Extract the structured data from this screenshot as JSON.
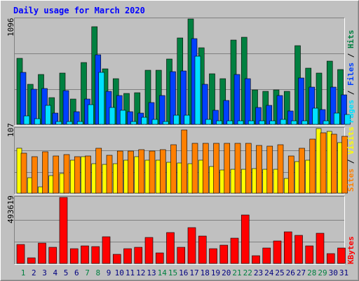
{
  "title": "Daily usage for March 2020",
  "colors": {
    "background": "#c0c0c0",
    "title": "#0000ff",
    "hits": "#008040",
    "files": "#0040ff",
    "pages": "#00e0ff",
    "visits": "#ffff00",
    "sites": "#ff8000",
    "kbytes": "#ff0000",
    "weekend_label": "#008040",
    "weekday_label": "#000080"
  },
  "chart_data": [
    {
      "type": "bar",
      "panel": "requests",
      "ymax_label": "1096",
      "ymax": 1096,
      "legend": [
        {
          "key": "pages",
          "label": "Pages"
        },
        {
          "key": "sep1",
          "label": " / "
        },
        {
          "key": "files",
          "label": "Files"
        },
        {
          "key": "sep2",
          "label": " / "
        },
        {
          "key": "hits",
          "label": "Hits"
        }
      ],
      "series": [
        {
          "name": "Hits",
          "values": [
            686,
            418,
            522,
            278,
            530,
            266,
            645,
            1012,
            578,
            474,
            322,
            332,
            562,
            562,
            678,
            902,
            1096,
            798,
            526,
            474,
            878,
            908,
            355,
            345,
            355,
            345,
            818,
            584,
            534,
            654,
            568
          ]
        },
        {
          "name": "Files",
          "values": [
            543,
            367,
            374,
            118,
            348,
            130,
            265,
            723,
            340,
            299,
            130,
            120,
            226,
            300,
            550,
            553,
            894,
            420,
            145,
            250,
            522,
            476,
            172,
            200,
            300,
            141,
            479,
            390,
            153,
            389,
            309
          ]
        },
        {
          "name": "Pages",
          "values": [
            89,
            62,
            200,
            30,
            30,
            30,
            202,
            538,
            176,
            144,
            30,
            70,
            48,
            30,
            94,
            97,
            711,
            50,
            40,
            40,
            40,
            40,
            40,
            40,
            51,
            40,
            40,
            170,
            40,
            120,
            99
          ]
        }
      ]
    },
    {
      "type": "bar",
      "panel": "visitors",
      "ymax_label": "107",
      "ymax": 107,
      "legend": [
        {
          "key": "sites",
          "label": "Sites"
        },
        {
          "key": "sep1",
          "label": " / "
        },
        {
          "key": "visits",
          "label": "Visits"
        }
      ],
      "series": [
        {
          "name": "Visits",
          "values": [
            74,
            26,
            10,
            29,
            33,
            55,
            60,
            49,
            48,
            49,
            55,
            61,
            55,
            55,
            51,
            50,
            49,
            55,
            44,
            38,
            40,
            40,
            41,
            40,
            40,
            25,
            52,
            55,
            107,
            102,
            84
          ]
        },
        {
          "name": "Sites",
          "values": [
            66,
            60,
            69,
            62,
            64,
            61,
            62,
            75,
            63,
            70,
            70,
            72,
            70,
            72,
            80,
            105,
            82,
            82,
            82,
            82,
            83,
            82,
            79,
            78,
            80,
            62,
            75,
            89,
            100,
            98,
            94
          ]
        }
      ]
    },
    {
      "type": "bar",
      "panel": "kbytes",
      "ymax_label": "493619",
      "ymax": 493619,
      "legend": [
        {
          "key": "kbytes",
          "label": "KBytes"
        }
      ],
      "series": [
        {
          "name": "KBytes",
          "values": [
            140000,
            40000,
            150000,
            120000,
            493619,
            110000,
            130000,
            125000,
            200000,
            70000,
            110000,
            120000,
            195000,
            80000,
            230000,
            120000,
            270000,
            205000,
            110000,
            135000,
            190000,
            360000,
            60000,
            115000,
            170000,
            235000,
            210000,
            130000,
            225000,
            75000,
            115000
          ]
        }
      ]
    }
  ],
  "x_labels": [
    {
      "day": "1",
      "weekend": true
    },
    {
      "day": "2",
      "weekend": false
    },
    {
      "day": "3",
      "weekend": false
    },
    {
      "day": "4",
      "weekend": false
    },
    {
      "day": "5",
      "weekend": false
    },
    {
      "day": "6",
      "weekend": false
    },
    {
      "day": "7",
      "weekend": true
    },
    {
      "day": "8",
      "weekend": true
    },
    {
      "day": "9",
      "weekend": false
    },
    {
      "day": "10",
      "weekend": false
    },
    {
      "day": "11",
      "weekend": false
    },
    {
      "day": "12",
      "weekend": false
    },
    {
      "day": "13",
      "weekend": false
    },
    {
      "day": "14",
      "weekend": true
    },
    {
      "day": "15",
      "weekend": true
    },
    {
      "day": "16",
      "weekend": false
    },
    {
      "day": "17",
      "weekend": false
    },
    {
      "day": "18",
      "weekend": false
    },
    {
      "day": "19",
      "weekend": false
    },
    {
      "day": "20",
      "weekend": false
    },
    {
      "day": "21",
      "weekend": true
    },
    {
      "day": "22",
      "weekend": true
    },
    {
      "day": "23",
      "weekend": false
    },
    {
      "day": "24",
      "weekend": false
    },
    {
      "day": "25",
      "weekend": false
    },
    {
      "day": "26",
      "weekend": false
    },
    {
      "day": "27",
      "weekend": false
    },
    {
      "day": "28",
      "weekend": true
    },
    {
      "day": "29",
      "weekend": true
    },
    {
      "day": "30",
      "weekend": false
    },
    {
      "day": "31",
      "weekend": false
    }
  ]
}
